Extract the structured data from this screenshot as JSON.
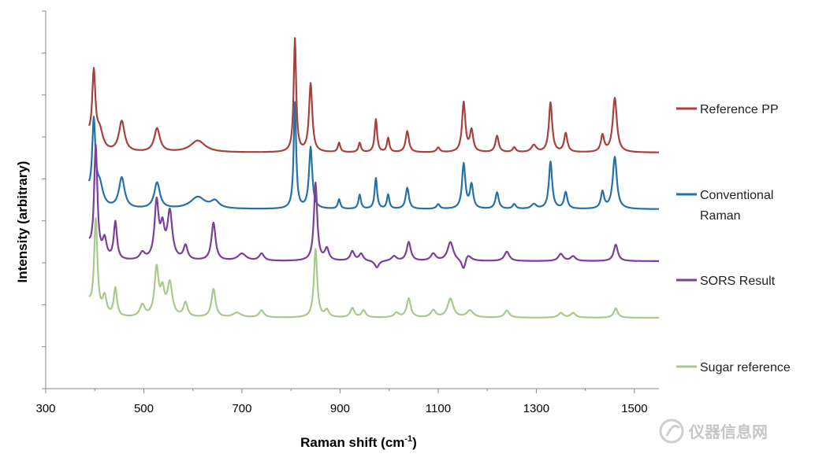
{
  "chart_data": {
    "type": "line",
    "title": "",
    "xlabel": "Raman shift (cm",
    "xlabel_sup": "-1",
    "xlabel_end": ")",
    "ylabel": "Intensity (arbitrary)",
    "xlim": [
      300,
      1550
    ],
    "xticks": [
      300,
      500,
      700,
      900,
      1100,
      1300,
      1500
    ],
    "y_gridlines": false,
    "legend_position": "right",
    "series": [
      {
        "name": "Reference  PP",
        "legend_lines": [
          "Reference  PP"
        ],
        "color": "#a8413d",
        "baseline": 100,
        "level_units": "stacked arbitrary intensity",
        "peaks": [
          [
            398,
            31,
            4
          ],
          [
            410,
            8,
            8
          ],
          [
            455,
            13,
            7
          ],
          [
            527,
            10,
            7
          ],
          [
            610,
            5,
            18
          ],
          [
            808,
            48,
            3
          ],
          [
            840,
            29,
            4
          ],
          [
            898,
            4,
            3
          ],
          [
            940,
            4,
            3
          ],
          [
            973,
            14,
            3
          ],
          [
            998,
            6,
            3
          ],
          [
            1037,
            9,
            4
          ],
          [
            1100,
            2,
            4
          ],
          [
            1152,
            21,
            4
          ],
          [
            1168,
            9,
            4
          ],
          [
            1220,
            7,
            4
          ],
          [
            1255,
            2,
            4
          ],
          [
            1295,
            3,
            6
          ],
          [
            1329,
            21,
            4
          ],
          [
            1360,
            8,
            4
          ],
          [
            1435,
            7,
            4
          ],
          [
            1460,
            23,
            5
          ]
        ]
      },
      {
        "name": "Conventional Raman",
        "legend_lines": [
          "Conventional",
          "Raman"
        ],
        "color": "#2372a8",
        "baseline": 76,
        "level_units": "stacked arbitrary intensity",
        "peaks": [
          [
            398,
            34,
            4
          ],
          [
            410,
            9,
            8
          ],
          [
            455,
            13,
            7
          ],
          [
            527,
            11,
            7
          ],
          [
            610,
            5,
            18
          ],
          [
            645,
            3,
            10
          ],
          [
            808,
            45,
            3
          ],
          [
            840,
            26,
            4
          ],
          [
            898,
            4,
            3
          ],
          [
            940,
            6,
            3
          ],
          [
            973,
            13,
            3
          ],
          [
            998,
            6,
            3
          ],
          [
            1037,
            9,
            4
          ],
          [
            1100,
            2,
            4
          ],
          [
            1152,
            19,
            4
          ],
          [
            1168,
            10,
            4
          ],
          [
            1220,
            7,
            4
          ],
          [
            1255,
            2,
            4
          ],
          [
            1295,
            2,
            6
          ],
          [
            1329,
            20,
            4
          ],
          [
            1360,
            7,
            4
          ],
          [
            1435,
            7,
            4
          ],
          [
            1460,
            22,
            5
          ]
        ]
      },
      {
        "name": "SORS Result",
        "legend_lines": [
          "SORS Result"
        ],
        "color": "#7d3e9b",
        "baseline": 54,
        "level_units": "stacked arbitrary intensity",
        "peaks": [
          [
            402,
            47,
            4
          ],
          [
            420,
            8,
            5
          ],
          [
            442,
            16,
            4
          ],
          [
            497,
            3,
            6
          ],
          [
            526,
            24,
            5
          ],
          [
            538,
            12,
            5
          ],
          [
            553,
            20,
            6
          ],
          [
            585,
            6,
            5
          ],
          [
            642,
            16,
            5
          ],
          [
            700,
            3,
            10
          ],
          [
            740,
            3,
            6
          ],
          [
            850,
            33,
            4
          ],
          [
            873,
            5,
            5
          ],
          [
            925,
            4,
            5
          ],
          [
            943,
            3,
            5
          ],
          [
            1010,
            2,
            6
          ],
          [
            1040,
            8,
            5
          ],
          [
            1090,
            3,
            6
          ],
          [
            1125,
            8,
            7
          ],
          [
            1160,
            3,
            8
          ],
          [
            1240,
            4,
            6
          ],
          [
            1350,
            3,
            6
          ],
          [
            1375,
            2,
            6
          ],
          [
            1462,
            7,
            5
          ]
        ],
        "dips": [
          [
            1152,
            -5,
            5
          ],
          [
            975,
            -3,
            5
          ]
        ]
      },
      {
        "name": "Sugar reference",
        "legend_lines": [
          "Sugar reference"
        ],
        "color": "#a9c98c",
        "baseline": 30,
        "level_units": "stacked arbitrary intensity",
        "peaks": [
          [
            402,
            40,
            4
          ],
          [
            420,
            8,
            5
          ],
          [
            442,
            12,
            4
          ],
          [
            497,
            5,
            6
          ],
          [
            526,
            20,
            5
          ],
          [
            538,
            10,
            5
          ],
          [
            553,
            14,
            6
          ],
          [
            585,
            6,
            5
          ],
          [
            642,
            12,
            5
          ],
          [
            690,
            2,
            10
          ],
          [
            740,
            3,
            6
          ],
          [
            850,
            29,
            4
          ],
          [
            873,
            3,
            5
          ],
          [
            925,
            4,
            5
          ],
          [
            948,
            3,
            5
          ],
          [
            1015,
            2,
            6
          ],
          [
            1040,
            8,
            5
          ],
          [
            1090,
            3,
            6
          ],
          [
            1125,
            8,
            7
          ],
          [
            1165,
            3,
            8
          ],
          [
            1240,
            3,
            6
          ],
          [
            1350,
            2,
            6
          ],
          [
            1375,
            2,
            6
          ],
          [
            1462,
            4,
            5
          ]
        ]
      }
    ]
  },
  "watermark": {
    "text": "仪器信息网"
  }
}
